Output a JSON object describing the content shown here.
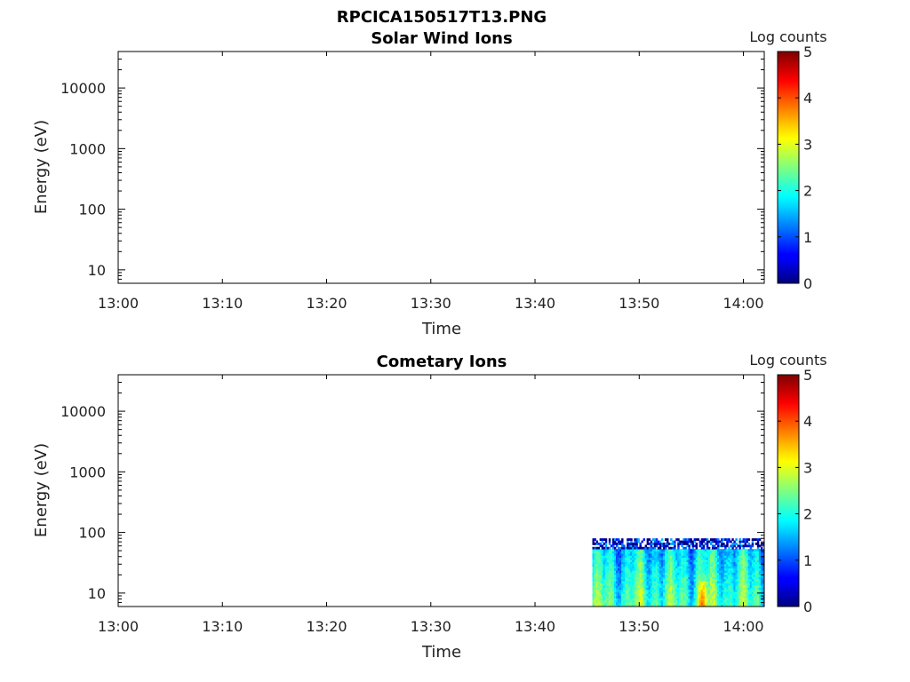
{
  "figure": {
    "title": "RPCICA150517T13.PNG"
  },
  "colors": {
    "axis": "#000000",
    "tick_text": "#222222",
    "jet_low": "#00007f",
    "jet_high": "#7f0000",
    "noise_speckle": "#000080"
  },
  "chart_data": [
    {
      "type": "heatmap",
      "title": "Solar Wind Ions",
      "xlabel": "Time",
      "ylabel": "Energy (eV)",
      "y_scale": "log",
      "xlim": [
        "13:00",
        "14:02"
      ],
      "ylim": [
        6,
        40000
      ],
      "x_ticks": [
        "13:00",
        "13:10",
        "13:20",
        "13:30",
        "13:40",
        "13:50",
        "14:00"
      ],
      "y_ticks": [
        "10",
        "100",
        "1000",
        "10000"
      ],
      "colorbar": {
        "label": "Log counts",
        "range": [
          0,
          5
        ],
        "ticks": [
          "0",
          "1",
          "2",
          "3",
          "4",
          "5"
        ],
        "colormap": "jet"
      },
      "data_segments": []
    },
    {
      "type": "heatmap",
      "title": "Cometary Ions",
      "xlabel": "Time",
      "ylabel": "Energy (eV)",
      "y_scale": "log",
      "xlim": [
        "13:00",
        "14:02"
      ],
      "ylim": [
        6,
        40000
      ],
      "x_ticks": [
        "13:00",
        "13:10",
        "13:20",
        "13:30",
        "13:40",
        "13:50",
        "14:00"
      ],
      "y_ticks": [
        "10",
        "100",
        "1000",
        "10000"
      ],
      "colorbar": {
        "label": "Log counts",
        "range": [
          0,
          5
        ],
        "ticks": [
          "0",
          "1",
          "2",
          "3",
          "4",
          "5"
        ],
        "colormap": "jet"
      },
      "data_segments": [
        {
          "time_start": "13:45:30",
          "time_end": "14:02",
          "energy_min": 6,
          "energy_max": 80,
          "typical_log_counts": [
            1.5,
            3.0
          ],
          "peak_log_counts": 4.0,
          "peak_times": [
            "13:56"
          ],
          "low_count_edge_energy": [
            50,
            80
          ]
        }
      ]
    }
  ]
}
